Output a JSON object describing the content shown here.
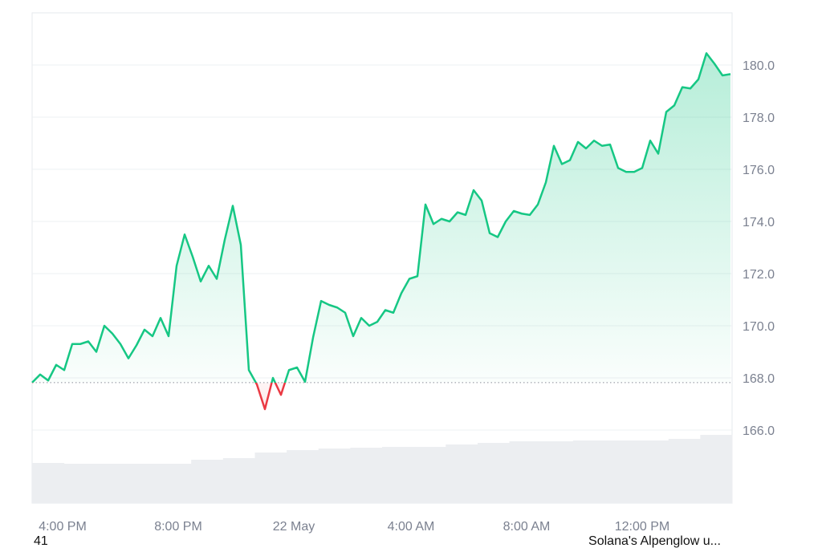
{
  "chart_data": {
    "type": "line",
    "series": [
      {
        "color": "#16c784",
        "down_color": "#ea3943",
        "values": [
          167.82,
          168.13,
          167.9,
          168.5,
          168.3,
          169.3,
          169.3,
          169.4,
          169.0,
          170.0,
          169.7,
          169.3,
          168.75,
          169.25,
          169.85,
          169.6,
          170.3,
          169.6,
          172.3,
          173.5,
          172.65,
          171.7,
          172.3,
          171.8,
          173.3,
          174.6,
          173.1,
          168.3,
          167.75,
          166.8,
          168.0,
          167.35,
          168.3,
          168.4,
          167.85,
          169.55,
          170.95,
          170.8,
          170.7,
          170.5,
          169.6,
          170.3,
          170.0,
          170.15,
          170.6,
          170.5,
          171.25,
          171.8,
          171.9,
          174.65,
          173.9,
          174.1,
          174.0,
          174.35,
          174.25,
          175.2,
          174.8,
          173.55,
          173.4,
          174.0,
          174.4,
          174.3,
          174.25,
          174.65,
          175.5,
          176.9,
          176.2,
          176.35,
          177.05,
          176.8,
          177.1,
          176.9,
          176.95,
          176.05,
          175.9,
          175.9,
          176.05,
          177.1,
          176.6,
          178.2,
          178.45,
          179.15,
          179.1,
          179.45,
          180.45,
          180.05,
          179.6,
          179.65
        ]
      }
    ],
    "volume": {
      "color": "#eceef1",
      "lim": [
        0,
        100
      ],
      "values": [
        50,
        49,
        49,
        49,
        49,
        54,
        56,
        63,
        66,
        68,
        69,
        70,
        70,
        73,
        75,
        77,
        77,
        78,
        78,
        78,
        80,
        85
      ]
    },
    "xlim": [
      0,
      87.2
    ],
    "xticks": [
      {
        "value": 3.8,
        "label": "4:00 PM"
      },
      {
        "value": 18.2,
        "label": "8:00 PM"
      },
      {
        "value": 32.6,
        "label": "22 May"
      },
      {
        "value": 47.2,
        "label": "4:00 AM"
      },
      {
        "value": 61.6,
        "label": "8:00 AM"
      },
      {
        "value": 76.0,
        "label": "12:00 PM"
      }
    ],
    "ylim": [
      163.2,
      182.0
    ],
    "yticks": [
      {
        "value": 166,
        "label": "166.0"
      },
      {
        "value": 168,
        "label": "168.0"
      },
      {
        "value": 170,
        "label": "170.0"
      },
      {
        "value": 172,
        "label": "172.0"
      },
      {
        "value": 174,
        "label": "174.0"
      },
      {
        "value": 176,
        "label": "176.0"
      },
      {
        "value": 178,
        "label": "178.0"
      },
      {
        "value": 180,
        "label": "180.0"
      }
    ],
    "grid": true
  },
  "footer": {
    "left": "41",
    "right": "Solana's Alpenglow u..."
  }
}
